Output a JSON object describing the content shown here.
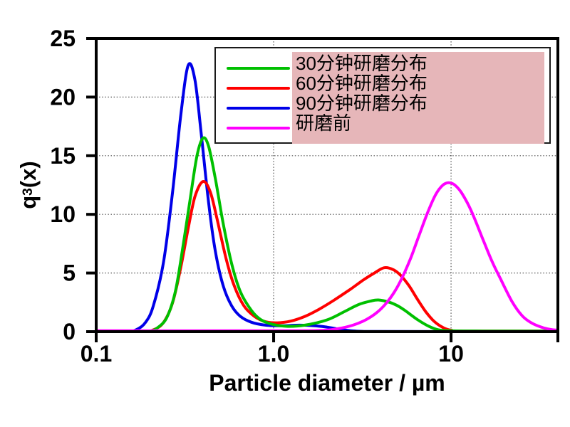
{
  "figure": {
    "background": "#ffffff"
  },
  "legend": {
    "highlight_color": "#e6b6b9",
    "border_color": "#1a1a1a",
    "items": [
      {
        "label": "30分钟研磨分布",
        "color": "#00c000"
      },
      {
        "label": "60分钟研磨分布",
        "color": "#ff0000"
      },
      {
        "label": "90分钟研磨分布",
        "color": "#0000e8"
      },
      {
        "label": "研磨前",
        "color": "#ff00ff"
      }
    ]
  },
  "chart_data": {
    "type": "line",
    "title": "",
    "xlabel": "Particle diameter / µm",
    "ylabel": "q3(x)",
    "ylabel_parts": {
      "base": "q",
      "sub": "3",
      "rest": "(x)"
    },
    "x_scale": "log",
    "xlim": [
      0.1,
      40
    ],
    "ylim": [
      0,
      25
    ],
    "x_ticks": [
      {
        "value": 0.1,
        "label": "0.1"
      },
      {
        "value": 1.0,
        "label": "1.0"
      },
      {
        "value": 10,
        "label": "10"
      },
      {
        "value": 40,
        "label": ""
      }
    ],
    "y_ticks": [
      0,
      5,
      10,
      15,
      20,
      25
    ],
    "grid": {
      "y_values": [
        5,
        10,
        15,
        20
      ],
      "x_values": [
        1.0,
        10
      ]
    },
    "legend_position": "top-right-inside",
    "series": [
      {
        "name": "30分钟研磨分布",
        "color": "#00c000",
        "peak": {
          "x": 0.4,
          "y": 16.5
        },
        "points": [
          [
            0.1,
            0
          ],
          [
            0.17,
            0
          ],
          [
            0.2,
            0.05
          ],
          [
            0.22,
            0.3
          ],
          [
            0.25,
            1.2
          ],
          [
            0.28,
            3.5
          ],
          [
            0.31,
            7.5
          ],
          [
            0.34,
            11.5
          ],
          [
            0.37,
            15.0
          ],
          [
            0.4,
            16.5
          ],
          [
            0.43,
            15.8
          ],
          [
            0.47,
            13.0
          ],
          [
            0.52,
            9.2
          ],
          [
            0.58,
            5.8
          ],
          [
            0.65,
            3.4
          ],
          [
            0.75,
            1.8
          ],
          [
            0.85,
            1.0
          ],
          [
            1.0,
            0.6
          ],
          [
            1.2,
            0.45
          ],
          [
            1.5,
            0.55
          ],
          [
            2.0,
            1.0
          ],
          [
            2.5,
            1.7
          ],
          [
            3.0,
            2.3
          ],
          [
            3.5,
            2.6
          ],
          [
            3.9,
            2.7
          ],
          [
            4.5,
            2.5
          ],
          [
            5.0,
            2.2
          ],
          [
            5.5,
            1.8
          ],
          [
            6.5,
            1.0
          ],
          [
            7.5,
            0.45
          ],
          [
            8.5,
            0.15
          ],
          [
            10,
            0.07
          ],
          [
            15,
            0.05
          ],
          [
            40,
            0.05
          ]
        ]
      },
      {
        "name": "60分钟研磨分布",
        "color": "#ff0000",
        "peak": {
          "x": 0.4,
          "y": 12.8
        },
        "points": [
          [
            0.1,
            0
          ],
          [
            0.18,
            0
          ],
          [
            0.21,
            0.15
          ],
          [
            0.24,
            0.8
          ],
          [
            0.27,
            2.5
          ],
          [
            0.3,
            5.5
          ],
          [
            0.33,
            8.8
          ],
          [
            0.36,
            11.5
          ],
          [
            0.4,
            12.8
          ],
          [
            0.44,
            11.9
          ],
          [
            0.48,
            9.6
          ],
          [
            0.54,
            6.2
          ],
          [
            0.6,
            3.9
          ],
          [
            0.68,
            2.2
          ],
          [
            0.78,
            1.3
          ],
          [
            0.9,
            0.85
          ],
          [
            1.05,
            0.75
          ],
          [
            1.25,
            0.9
          ],
          [
            1.5,
            1.3
          ],
          [
            1.8,
            1.9
          ],
          [
            2.2,
            2.7
          ],
          [
            2.7,
            3.6
          ],
          [
            3.2,
            4.4
          ],
          [
            3.7,
            5.0
          ],
          [
            4.2,
            5.45
          ],
          [
            4.7,
            5.3
          ],
          [
            5.2,
            4.8
          ],
          [
            5.8,
            3.9
          ],
          [
            6.5,
            2.7
          ],
          [
            7.2,
            1.7
          ],
          [
            8.0,
            0.9
          ],
          [
            9.0,
            0.35
          ],
          [
            10,
            0.12
          ],
          [
            12,
            0.05
          ],
          [
            40,
            0.05
          ]
        ]
      },
      {
        "name": "90分钟研磨分布",
        "color": "#0000e8",
        "peak": {
          "x": 0.33,
          "y": 22.7
        },
        "points": [
          [
            0.1,
            0
          ],
          [
            0.15,
            0
          ],
          [
            0.17,
            0.2
          ],
          [
            0.19,
            0.8
          ],
          [
            0.21,
            2.2
          ],
          [
            0.24,
            6.0
          ],
          [
            0.27,
            12.0
          ],
          [
            0.3,
            18.5
          ],
          [
            0.33,
            22.7
          ],
          [
            0.36,
            21.5
          ],
          [
            0.39,
            17.0
          ],
          [
            0.43,
            11.0
          ],
          [
            0.47,
            6.8
          ],
          [
            0.52,
            3.9
          ],
          [
            0.58,
            2.2
          ],
          [
            0.65,
            1.3
          ],
          [
            0.75,
            0.8
          ],
          [
            0.9,
            0.55
          ],
          [
            1.1,
            0.5
          ],
          [
            1.4,
            0.55
          ],
          [
            1.7,
            0.5
          ],
          [
            2.0,
            0.38
          ],
          [
            2.4,
            0.18
          ],
          [
            2.8,
            0.06
          ],
          [
            3.3,
            0.02
          ],
          [
            4.0,
            0.01
          ],
          [
            40,
            0.01
          ]
        ]
      },
      {
        "name": "研磨前",
        "color": "#ff00ff",
        "peak": {
          "x": 9.6,
          "y": 12.7
        },
        "points": [
          [
            0.1,
            0.07
          ],
          [
            1.0,
            0.07
          ],
          [
            1.8,
            0.1
          ],
          [
            2.3,
            0.25
          ],
          [
            2.8,
            0.55
          ],
          [
            3.3,
            1.0
          ],
          [
            3.8,
            1.6
          ],
          [
            4.3,
            2.4
          ],
          [
            4.8,
            3.4
          ],
          [
            5.3,
            4.6
          ],
          [
            5.9,
            6.2
          ],
          [
            6.6,
            8.2
          ],
          [
            7.4,
            10.2
          ],
          [
            8.2,
            11.7
          ],
          [
            9.0,
            12.5
          ],
          [
            9.7,
            12.7
          ],
          [
            10.5,
            12.5
          ],
          [
            11.5,
            11.8
          ],
          [
            13,
            10.3
          ],
          [
            15,
            8.0
          ],
          [
            17,
            6.0
          ],
          [
            19,
            4.5
          ],
          [
            22,
            2.6
          ],
          [
            25,
            1.4
          ],
          [
            28,
            0.8
          ],
          [
            32,
            0.4
          ],
          [
            36,
            0.2
          ],
          [
            40,
            0.12
          ]
        ]
      }
    ]
  }
}
